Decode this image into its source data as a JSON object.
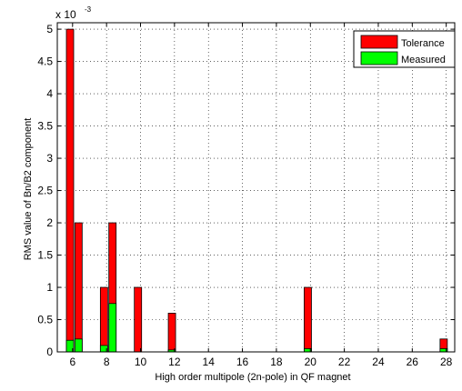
{
  "chart_data": {
    "type": "bar",
    "stacked": "overlay",
    "xlabel": "High order multipole (2n-pole) in QF magnet",
    "ylabel": "RMS value of Bn/B2 component",
    "scale_label": "x 10",
    "scale_exponent": "-3",
    "xlim": [
      5.1,
      28.5
    ],
    "ylim": [
      0,
      5.1
    ],
    "xticks": [
      "6",
      "8",
      "10",
      "12",
      "14",
      "16",
      "18",
      "20",
      "22",
      "24",
      "26",
      "28"
    ],
    "yticks": [
      "0",
      "0.5",
      "1",
      "1.5",
      "2",
      "2.5",
      "3",
      "3.5",
      "4",
      "4.5",
      "5"
    ],
    "grid": true,
    "legend_position": "top-right",
    "series": [
      {
        "name": "Tolerance",
        "color": "#ff0000",
        "points": [
          {
            "x": 5.85,
            "y": 5.0
          },
          {
            "x": 6.35,
            "y": 2.0
          },
          {
            "x": 7.85,
            "y": 1.0
          },
          {
            "x": 8.35,
            "y": 2.0
          },
          {
            "x": 9.85,
            "y": 1.0
          },
          {
            "x": 11.85,
            "y": 0.6
          },
          {
            "x": 19.85,
            "y": 1.0
          },
          {
            "x": 27.85,
            "y": 0.2
          }
        ]
      },
      {
        "name": "Measured",
        "color": "#00ff00",
        "points": [
          {
            "x": 5.85,
            "y": 0.18
          },
          {
            "x": 6.35,
            "y": 0.2
          },
          {
            "x": 7.85,
            "y": 0.1
          },
          {
            "x": 8.35,
            "y": 0.75
          },
          {
            "x": 9.85,
            "y": 0.0
          },
          {
            "x": 11.85,
            "y": 0.03
          },
          {
            "x": 19.85,
            "y": 0.05
          },
          {
            "x": 27.85,
            "y": 0.05
          }
        ]
      }
    ]
  }
}
